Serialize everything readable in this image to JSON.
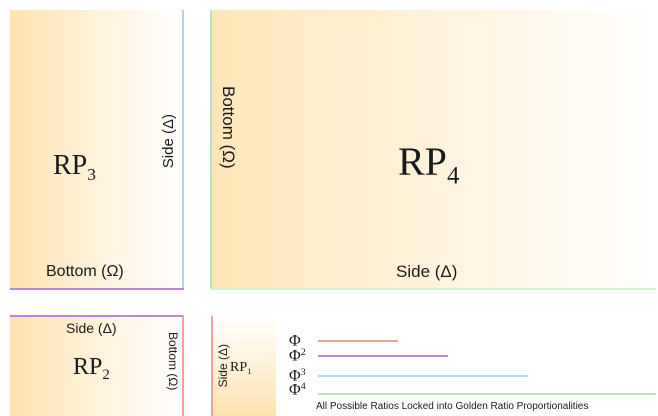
{
  "rp3": {
    "label_main": "RP",
    "label_sub": "3",
    "side": "Side (Δ)",
    "bottom": "Bottom (Ω)"
  },
  "rp4": {
    "label_main": "RP",
    "label_sub": "4",
    "side": "Side (Δ)",
    "bottom": "Bottom (Ω)"
  },
  "rp2": {
    "label_main": "RP",
    "label_sub": "2",
    "side": "Side (Δ)",
    "bottom": "Bottom (Ω)"
  },
  "rp1": {
    "label_main": "RP",
    "label_sub": "1",
    "side": "Side (Δ)"
  },
  "legend": {
    "phi": "Φ",
    "items": [
      {
        "sup": "",
        "color": "#f4a09a"
      },
      {
        "sup": "2",
        "color": "#b489d6"
      },
      {
        "sup": "3",
        "color": "#a6d8ee"
      },
      {
        "sup": "4",
        "color": "#b9e6b0"
      }
    ],
    "caption": "All Possible Ratios Locked into Golden Ratio Proportionalities"
  },
  "colors": {
    "pink": "#f4a09a",
    "purple": "#b489d6",
    "blue": "#a6d8ee",
    "green": "#b9e6b0"
  }
}
